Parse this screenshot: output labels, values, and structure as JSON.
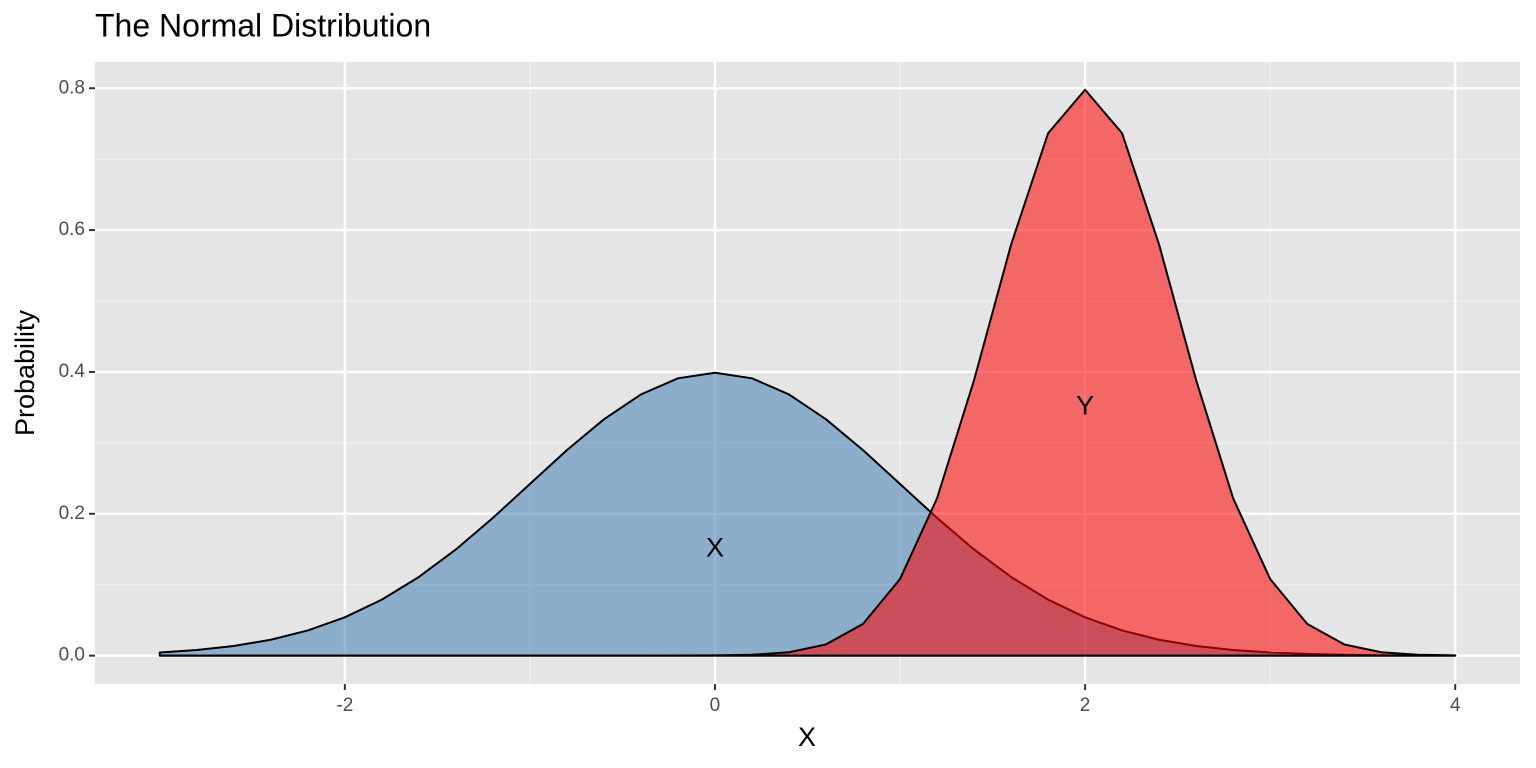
{
  "chart_data": {
    "type": "area",
    "title": "The Normal Distribution",
    "x_label": "X",
    "y_label": "Probability",
    "x": [
      -3,
      -2.8,
      -2.6,
      -2.4,
      -2.2,
      -2,
      -1.8,
      -1.6,
      -1.4,
      -1.2,
      -1,
      -0.8,
      -0.6,
      -0.4,
      -0.2,
      0,
      0.2,
      0.4,
      0.6,
      0.8,
      1,
      1.2,
      1.4,
      1.6,
      1.8,
      2,
      2.2,
      2.4,
      2.6,
      2.8,
      3,
      3.2,
      3.4,
      3.6,
      3.8,
      4
    ],
    "series": [
      {
        "name": "X",
        "color": "#4682b4",
        "values": [
          0.0044,
          0.0079,
          0.0136,
          0.0224,
          0.0355,
          0.054,
          0.079,
          0.1109,
          0.1497,
          0.1942,
          0.242,
          0.2897,
          0.3332,
          0.3683,
          0.391,
          0.3989,
          0.391,
          0.3683,
          0.3332,
          0.2897,
          0.242,
          0.1942,
          0.1497,
          0.1109,
          0.079,
          0.054,
          0.0355,
          0.0224,
          0.0136,
          0.0079,
          0.0044,
          0.0024,
          0.0012,
          0.0006,
          0.0003,
          0.0001
        ]
      },
      {
        "name": "Y",
        "color": "#ff0000",
        "values": [
          0,
          0,
          0,
          0,
          0,
          0,
          0,
          0,
          0,
          0,
          0,
          0,
          0,
          0,
          0.0001,
          0.0003,
          0.0012,
          0.0048,
          0.0158,
          0.0448,
          0.108,
          0.2218,
          0.3884,
          0.5794,
          0.7365,
          0.7979,
          0.7365,
          0.5794,
          0.3884,
          0.2218,
          0.108,
          0.0448,
          0.0158,
          0.0048,
          0.0012,
          0.0003
        ]
      }
    ],
    "annotations": [
      {
        "text": "X",
        "x": 0,
        "y": 0.15
      },
      {
        "text": "Y",
        "x": 2,
        "y": 0.35
      }
    ],
    "fill_opacity": 0.55,
    "xlim": [
      -3.35,
      4.35
    ],
    "xticks": [
      -2,
      0,
      2,
      4
    ],
    "ylim": [
      -0.04,
      0.837
    ],
    "yticks": [
      {
        "value": 0,
        "label": "0.0"
      },
      0.2,
      0.4,
      0.6,
      0.8
    ],
    "grid": true
  }
}
